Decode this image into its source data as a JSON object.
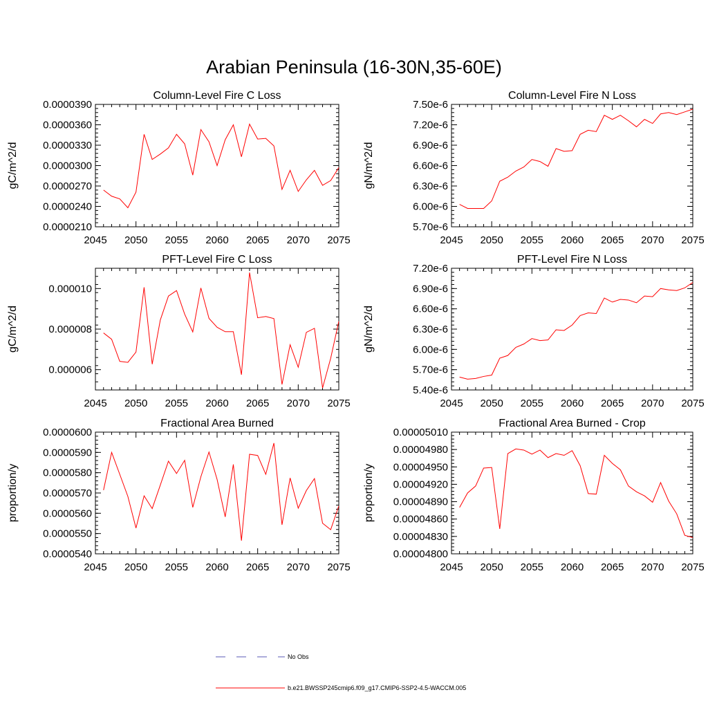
{
  "figure": {
    "title": "Arabian Peninsula (16-30N,35-60E)",
    "legend": [
      {
        "label": "No Obs",
        "color": "#5a5ab4",
        "style": "dashed"
      },
      {
        "label": "b.e21.BWSSP245cmip6.f09_g17.CMIP6-SSP2-4.5-WACCM.005",
        "color": "#ff0000",
        "style": "solid"
      }
    ]
  },
  "chart_data": [
    {
      "type": "line",
      "title": "Column-Level Fire C Loss",
      "ylabel": "gC/m^2/d",
      "xlim": [
        2045,
        2075
      ],
      "ylim": [
        2.1e-05,
        3.9e-05
      ],
      "xticks": [
        2045,
        2050,
        2055,
        2060,
        2065,
        2070,
        2075
      ],
      "xtick_labels": [
        "2045",
        "2050",
        "2055",
        "2060",
        "2065",
        "2070",
        "2075"
      ],
      "yticks": [
        2.1e-05,
        2.4e-05,
        2.7e-05,
        3e-05,
        3.3e-05,
        3.6e-05,
        3.9e-05
      ],
      "ytick_labels": [
        "0.0000210",
        "0.0000240",
        "0.0000270",
        "0.0000300",
        "0.0000330",
        "0.0000360",
        "0.0000390"
      ],
      "color": "#ff0000",
      "x": [
        2046,
        2047,
        2048,
        2049,
        2050,
        2051,
        2052,
        2053,
        2054,
        2055,
        2056,
        2057,
        2058,
        2059,
        2060,
        2061,
        2062,
        2063,
        2064,
        2065,
        2066,
        2067,
        2068,
        2069,
        2070,
        2071,
        2072,
        2073,
        2074,
        2075
      ],
      "y": [
        2.64e-05,
        2.55e-05,
        2.51e-05,
        2.38e-05,
        2.61e-05,
        3.46e-05,
        3.09e-05,
        3.17e-05,
        3.26e-05,
        3.46e-05,
        3.32e-05,
        2.86e-05,
        3.53e-05,
        3.35e-05,
        3e-05,
        3.38e-05,
        3.6e-05,
        3.13e-05,
        3.61e-05,
        3.39e-05,
        3.4e-05,
        3.29e-05,
        2.65e-05,
        2.93e-05,
        2.62e-05,
        2.79e-05,
        2.93e-05,
        2.71e-05,
        2.78e-05,
        2.97e-05
      ]
    },
    {
      "type": "line",
      "title": "Column-Level Fire N Loss",
      "ylabel": "gN/m^2/d",
      "xlim": [
        2045,
        2075
      ],
      "ylim": [
        5.7e-06,
        7.5e-06
      ],
      "xticks": [
        2045,
        2050,
        2055,
        2060,
        2065,
        2070,
        2075
      ],
      "xtick_labels": [
        "2045",
        "2050",
        "2055",
        "2060",
        "2065",
        "2070",
        "2075"
      ],
      "yticks": [
        5.7e-06,
        6e-06,
        6.3e-06,
        6.6e-06,
        6.9e-06,
        7.2e-06,
        7.5e-06
      ],
      "ytick_labels": [
        "5.70e-6",
        "6.00e-6",
        "6.30e-6",
        "6.60e-6",
        "6.90e-6",
        "7.20e-6",
        "7.50e-6"
      ],
      "color": "#ff0000",
      "x": [
        2046,
        2047,
        2048,
        2049,
        2050,
        2051,
        2052,
        2053,
        2054,
        2055,
        2056,
        2057,
        2058,
        2059,
        2060,
        2061,
        2062,
        2063,
        2064,
        2065,
        2066,
        2067,
        2068,
        2069,
        2070,
        2071,
        2072,
        2073,
        2074,
        2075
      ],
      "y": [
        6.03e-06,
        5.97e-06,
        5.97e-06,
        5.97e-06,
        6.08e-06,
        6.37e-06,
        6.43e-06,
        6.52e-06,
        6.58e-06,
        6.69e-06,
        6.66e-06,
        6.59e-06,
        6.85e-06,
        6.81e-06,
        6.82e-06,
        7.06e-06,
        7.12e-06,
        7.1e-06,
        7.34e-06,
        7.28e-06,
        7.34e-06,
        7.26e-06,
        7.17e-06,
        7.28e-06,
        7.22e-06,
        7.36e-06,
        7.38e-06,
        7.35e-06,
        7.39e-06,
        7.43e-06
      ]
    },
    {
      "type": "line",
      "title": "PFT-Level Fire C Loss",
      "ylabel": "gC/m^2/d",
      "xlim": [
        2045,
        2075
      ],
      "ylim": [
        5e-06,
        1.1e-05
      ],
      "xticks": [
        2045,
        2050,
        2055,
        2060,
        2065,
        2070,
        2075
      ],
      "xtick_labels": [
        "2045",
        "2050",
        "2055",
        "2060",
        "2065",
        "2070",
        "2075"
      ],
      "yticks": [
        6e-06,
        8e-06,
        1e-05
      ],
      "ytick_labels": [
        "0.000006",
        "0.000008",
        "0.000010"
      ],
      "color": "#ff0000",
      "x": [
        2046,
        2047,
        2048,
        2049,
        2050,
        2051,
        2052,
        2053,
        2054,
        2055,
        2056,
        2057,
        2058,
        2059,
        2060,
        2061,
        2062,
        2063,
        2064,
        2065,
        2066,
        2067,
        2068,
        2069,
        2070,
        2071,
        2072,
        2073,
        2074,
        2075
      ],
      "y": [
        7.81e-06,
        7.5e-06,
        6.41e-06,
        6.36e-06,
        6.87e-06,
        1.006e-05,
        6.27e-06,
        8.45e-06,
        9.63e-06,
        9.9e-06,
        8.74e-06,
        7.86e-06,
        1.003e-05,
        8.53e-06,
        8.09e-06,
        7.87e-06,
        7.87e-06,
        5.75e-06,
        1.079e-05,
        8.56e-06,
        8.62e-06,
        8.52e-06,
        5.27e-06,
        7.23e-06,
        6.12e-06,
        7.84e-06,
        8.04e-06,
        5.1e-06,
        6.56e-06,
        8.38e-06
      ]
    },
    {
      "type": "line",
      "title": "PFT-Level Fire N Loss",
      "ylabel": "gN/m^2/d",
      "xlim": [
        2045,
        2075
      ],
      "ylim": [
        5.4e-06,
        7.2e-06
      ],
      "xticks": [
        2045,
        2050,
        2055,
        2060,
        2065,
        2070,
        2075
      ],
      "xtick_labels": [
        "2045",
        "2050",
        "2055",
        "2060",
        "2065",
        "2070",
        "2075"
      ],
      "yticks": [
        5.4e-06,
        5.7e-06,
        6e-06,
        6.3e-06,
        6.6e-06,
        6.9e-06,
        7.2e-06
      ],
      "ytick_labels": [
        "5.40e-6",
        "5.70e-6",
        "6.00e-6",
        "6.30e-6",
        "6.60e-6",
        "6.90e-6",
        "7.20e-6"
      ],
      "color": "#ff0000",
      "x": [
        2046,
        2047,
        2048,
        2049,
        2050,
        2051,
        2052,
        2053,
        2054,
        2055,
        2056,
        2057,
        2058,
        2059,
        2060,
        2061,
        2062,
        2063,
        2064,
        2065,
        2066,
        2067,
        2068,
        2069,
        2070,
        2071,
        2072,
        2073,
        2074,
        2075
      ],
      "y": [
        5.59e-06,
        5.56e-06,
        5.57e-06,
        5.6e-06,
        5.62e-06,
        5.87e-06,
        5.91e-06,
        6.03e-06,
        6.08e-06,
        6.16e-06,
        6.13e-06,
        6.14e-06,
        6.29e-06,
        6.28e-06,
        6.36e-06,
        6.5e-06,
        6.54e-06,
        6.53e-06,
        6.76e-06,
        6.7e-06,
        6.74e-06,
        6.73e-06,
        6.69e-06,
        6.79e-06,
        6.78e-06,
        6.9e-06,
        6.88e-06,
        6.87e-06,
        6.91e-06,
        6.99e-06
      ]
    },
    {
      "type": "line",
      "title": "Fractional Area Burned",
      "ylabel": "proportion/y",
      "xlim": [
        2045,
        2075
      ],
      "ylim": [
        5.4e-05,
        6e-05
      ],
      "xticks": [
        2045,
        2050,
        2055,
        2060,
        2065,
        2070,
        2075
      ],
      "xtick_labels": [
        "2045",
        "2050",
        "2055",
        "2060",
        "2065",
        "2070",
        "2075"
      ],
      "yticks": [
        5.4e-05,
        5.5e-05,
        5.6e-05,
        5.7e-05,
        5.8e-05,
        5.9e-05,
        6e-05
      ],
      "ytick_labels": [
        "0.0000540",
        "0.0000550",
        "0.0000560",
        "0.0000570",
        "0.0000580",
        "0.0000590",
        "0.0000600"
      ],
      "color": "#ff0000",
      "x": [
        2046,
        2047,
        2048,
        2049,
        2050,
        2051,
        2052,
        2053,
        2054,
        2055,
        2056,
        2057,
        2058,
        2059,
        2060,
        2061,
        2062,
        2063,
        2064,
        2065,
        2066,
        2067,
        2068,
        2069,
        2070,
        2071,
        2072,
        2073,
        2074,
        2075
      ],
      "y": [
        5.714e-05,
        5.9e-05,
        5.792e-05,
        5.683e-05,
        5.527e-05,
        5.686e-05,
        5.623e-05,
        5.739e-05,
        5.857e-05,
        5.796e-05,
        5.861e-05,
        5.629e-05,
        5.78e-05,
        5.902e-05,
        5.767e-05,
        5.582e-05,
        5.841e-05,
        5.465e-05,
        5.891e-05,
        5.885e-05,
        5.792e-05,
        5.946e-05,
        5.543e-05,
        5.774e-05,
        5.625e-05,
        5.712e-05,
        5.771e-05,
        5.551e-05,
        5.519e-05,
        5.636e-05
      ]
    },
    {
      "type": "line",
      "title": "Fractional Area Burned - Crop",
      "ylabel": "proportion/y",
      "xlim": [
        2045,
        2075
      ],
      "ylim": [
        4.8e-05,
        5.01e-05
      ],
      "xticks": [
        2045,
        2050,
        2055,
        2060,
        2065,
        2070,
        2075
      ],
      "xtick_labels": [
        "2045",
        "2050",
        "2055",
        "2060",
        "2065",
        "2070",
        "2075"
      ],
      "yticks": [
        4.8e-05,
        4.83e-05,
        4.86e-05,
        4.89e-05,
        4.92e-05,
        4.95e-05,
        4.98e-05,
        5.01e-05
      ],
      "ytick_labels": [
        "0.00004800",
        "0.00004830",
        "0.00004860",
        "0.00004890",
        "0.00004920",
        "0.00004950",
        "0.00004980",
        "0.00005010"
      ],
      "color": "#ff0000",
      "x": [
        2046,
        2047,
        2048,
        2049,
        2050,
        2051,
        2052,
        2053,
        2054,
        2055,
        2056,
        2057,
        2058,
        2059,
        2060,
        2061,
        2062,
        2063,
        2064,
        2065,
        2066,
        2067,
        2068,
        2069,
        2070,
        2071,
        2072,
        2073,
        2074,
        2075
      ],
      "y": [
        4.88e-05,
        4.905e-05,
        4.917e-05,
        4.948e-05,
        4.949e-05,
        4.843e-05,
        4.973e-05,
        4.981e-05,
        4.979e-05,
        4.972e-05,
        4.979e-05,
        4.966e-05,
        4.973e-05,
        4.97e-05,
        4.978e-05,
        4.952e-05,
        4.904e-05,
        4.903e-05,
        4.97e-05,
        4.956e-05,
        4.945e-05,
        4.917e-05,
        4.907e-05,
        4.9e-05,
        4.889e-05,
        4.923e-05,
        4.891e-05,
        4.869e-05,
        4.832e-05,
        4.828e-05
      ]
    }
  ]
}
